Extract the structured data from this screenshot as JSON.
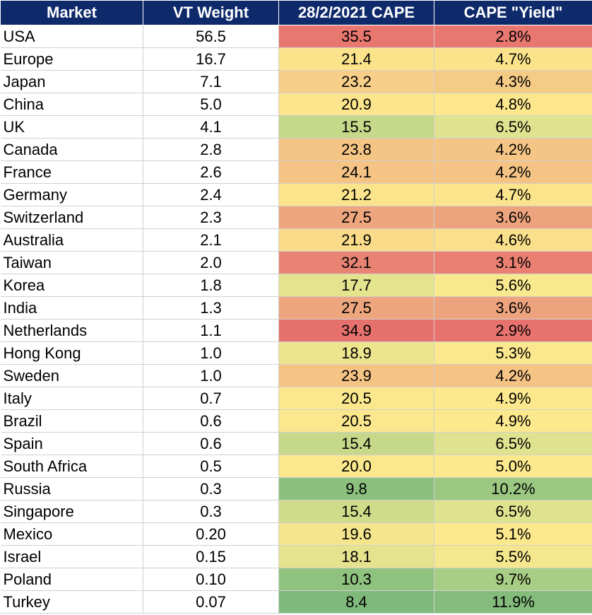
{
  "table": {
    "headers": [
      "Market",
      "VT Weight",
      "28/2/2021 CAPE",
      "CAPE \"Yield\""
    ],
    "rows": [
      {
        "market": "USA",
        "weight": "56.5",
        "cape": "35.5",
        "yield": "2.8%",
        "cape_color": "#e8776f",
        "yield_color": "#e8776f"
      },
      {
        "market": "Europe",
        "weight": "16.7",
        "cape": "21.4",
        "yield": "4.7%",
        "cape_color": "#fbe38b",
        "yield_color": "#fbe38b"
      },
      {
        "market": "Japan",
        "weight": "7.1",
        "cape": "23.2",
        "yield": "4.3%",
        "cape_color": "#f7cf88",
        "yield_color": "#f5cb86"
      },
      {
        "market": "China",
        "weight": "5.0",
        "cape": "20.9",
        "yield": "4.8%",
        "cape_color": "#fce58c",
        "yield_color": "#fce78c"
      },
      {
        "market": "UK",
        "weight": "4.1",
        "cape": "15.5",
        "yield": "6.5%",
        "cape_color": "#c6d88a",
        "yield_color": "#dfe28e"
      },
      {
        "market": "Canada",
        "weight": "2.8",
        "cape": "23.8",
        "yield": "4.2%",
        "cape_color": "#f5c585",
        "yield_color": "#f5c585"
      },
      {
        "market": "France",
        "weight": "2.6",
        "cape": "24.1",
        "yield": "4.2%",
        "cape_color": "#f5c485",
        "yield_color": "#f5c485"
      },
      {
        "market": "Germany",
        "weight": "2.4",
        "cape": "21.2",
        "yield": "4.7%",
        "cape_color": "#fce48c",
        "yield_color": "#fce48c"
      },
      {
        "market": "Switzerland",
        "weight": "2.3",
        "cape": "27.5",
        "yield": "3.6%",
        "cape_color": "#eda67e",
        "yield_color": "#eda47e"
      },
      {
        "market": "Australia",
        "weight": "2.1",
        "cape": "21.9",
        "yield": "4.6%",
        "cape_color": "#fadb8a",
        "yield_color": "#fbe08b"
      },
      {
        "market": "Taiwan",
        "weight": "2.0",
        "cape": "32.1",
        "yield": "3.1%",
        "cape_color": "#e98474",
        "yield_color": "#e98072"
      },
      {
        "market": "Korea",
        "weight": "1.8",
        "cape": "17.7",
        "yield": "5.6%",
        "cape_color": "#e4e38e",
        "yield_color": "#f8e88e"
      },
      {
        "market": "India",
        "weight": "1.3",
        "cape": "27.5",
        "yield": "3.6%",
        "cape_color": "#eda67e",
        "yield_color": "#eda47e"
      },
      {
        "market": "Netherlands",
        "weight": "1.1",
        "cape": "34.9",
        "yield": "2.9%",
        "cape_color": "#e6706c",
        "yield_color": "#e7726e"
      },
      {
        "market": "Hong Kong",
        "weight": "1.0",
        "cape": "18.9",
        "yield": "5.3%",
        "cape_color": "#ede48e",
        "yield_color": "#fbe78d"
      },
      {
        "market": "Sweden",
        "weight": "1.0",
        "cape": "23.9",
        "yield": "4.2%",
        "cape_color": "#f5c485",
        "yield_color": "#f5c485"
      },
      {
        "market": "Italy",
        "weight": "0.7",
        "cape": "20.5",
        "yield": "4.9%",
        "cape_color": "#fbe78d",
        "yield_color": "#fce88d"
      },
      {
        "market": "Brazil",
        "weight": "0.6",
        "cape": "20.5",
        "yield": "4.9%",
        "cape_color": "#fbe78d",
        "yield_color": "#fce88d"
      },
      {
        "market": "Spain",
        "weight": "0.6",
        "cape": "15.4",
        "yield": "6.5%",
        "cape_color": "#c6d88a",
        "yield_color": "#dfe28e"
      },
      {
        "market": "South Africa",
        "weight": "0.5",
        "cape": "20.0",
        "yield": "5.0%",
        "cape_color": "#fbe78d",
        "yield_color": "#fce88d"
      },
      {
        "market": "Russia",
        "weight": "0.3",
        "cape": "9.8",
        "yield": "10.2%",
        "cape_color": "#8cc07e",
        "yield_color": "#9cc881"
      },
      {
        "market": "Singapore",
        "weight": "0.3",
        "cape": "15.4",
        "yield": "6.5%",
        "cape_color": "#cfdd8b",
        "yield_color": "#dfe28e"
      },
      {
        "market": "Mexico",
        "weight": "0.20",
        "cape": "19.6",
        "yield": "5.1%",
        "cape_color": "#f5e68d",
        "yield_color": "#fce88d"
      },
      {
        "market": "Israel",
        "weight": "0.15",
        "cape": "18.1",
        "yield": "5.5%",
        "cape_color": "#e6e38e",
        "yield_color": "#f5e78e"
      },
      {
        "market": "Poland",
        "weight": "0.10",
        "cape": "10.3",
        "yield": "9.7%",
        "cape_color": "#8fc27e",
        "yield_color": "#a8cd84"
      },
      {
        "market": "Turkey",
        "weight": "0.07",
        "cape": "8.4",
        "yield": "11.9%",
        "cape_color": "#7fb97b",
        "yield_color": "#84bc7c"
      }
    ]
  }
}
